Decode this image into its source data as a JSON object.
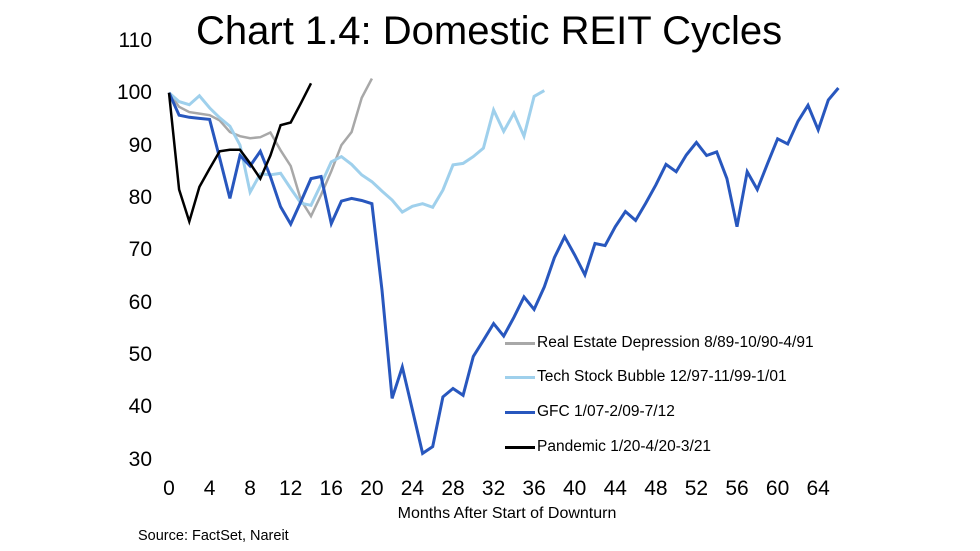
{
  "header": {
    "title": "Chart 1.4: Domestic REIT Cycles"
  },
  "source_note": "Source: FactSet, Nareit",
  "chart_data": {
    "type": "line",
    "title": "Chart 1.4: Domestic REIT Cycles",
    "xlabel": "Months After Start of Downturn",
    "ylabel": "",
    "x_ticks": [
      0,
      4,
      8,
      12,
      16,
      20,
      24,
      28,
      32,
      36,
      40,
      44,
      48,
      52,
      56,
      60,
      64
    ],
    "y_ticks": [
      110,
      100,
      90,
      80,
      70,
      60,
      50,
      40,
      30
    ],
    "ylim": [
      30,
      110
    ],
    "xlim": [
      0,
      66
    ],
    "grid": false,
    "legend_position": "inside-right",
    "x_is_months_after_downturn_start": true,
    "series": [
      {
        "name": "Real Estate Depression 8/89-10/90-4/91",
        "color": "#a8a8a8",
        "x_start": 0,
        "values": [
          100,
          97.3,
          96.3,
          96,
          95.7,
          94.7,
          92.5,
          91.7,
          91.3,
          91.5,
          92.4,
          89,
          86,
          79.5,
          76.4,
          80.5,
          85,
          90,
          92.5,
          99,
          102.7
        ]
      },
      {
        "name": "Tech Stock Bubble 12/97-11/99-1/01",
        "color": "#9fd0ec",
        "x_start": 0,
        "values": [
          100,
          98.3,
          97.7,
          99.4,
          97.1,
          95.2,
          93.6,
          90,
          81,
          84.5,
          84.3,
          84.6,
          81.7,
          78.9,
          78.5,
          82.5,
          86.8,
          87.8,
          86.3,
          84.3,
          83,
          81.2,
          79.5,
          77.2,
          78.3,
          78.8,
          78.1,
          81.4,
          86.2,
          86.5,
          87.8,
          89.4,
          96.7,
          92.6,
          96.1,
          91.7,
          99.3,
          100.4
        ]
      },
      {
        "name": "GFC 1/07-2/09-7/12",
        "color": "#2857be",
        "x_start": 0,
        "values": [
          100,
          95.7,
          95.3,
          95.1,
          94.9,
          87.5,
          79.8,
          88,
          86,
          88.8,
          84,
          78.2,
          74.9,
          79.2,
          83.6,
          84,
          75,
          79.3,
          79.8,
          79.4,
          78.8,
          62.3,
          41.6,
          47.6,
          39.4,
          31.1,
          32.4,
          41.9,
          43.5,
          42.2,
          49.6,
          52.7,
          55.9,
          53.5,
          57.1,
          61,
          58.6,
          62.9,
          68.5,
          72.5,
          69,
          65.2,
          71.2,
          70.8,
          74.4,
          77.3,
          75.6,
          78.9,
          82.4,
          86.3,
          84.9,
          88.1,
          90.5,
          88,
          88.7,
          83.6,
          74.4,
          84.9,
          81.5,
          86.4,
          91.2,
          90.2,
          94.5,
          97.6,
          92.9,
          98.6,
          100.9
        ]
      },
      {
        "name": "Pandemic 1/20-4/20-3/21",
        "color": "#000000",
        "x_start": 0,
        "values": [
          100,
          81.5,
          75.4,
          82,
          85.5,
          88.8,
          89.1,
          89.1,
          86.5,
          83.6,
          88,
          93.8,
          94.3,
          98,
          101.8
        ]
      }
    ]
  }
}
